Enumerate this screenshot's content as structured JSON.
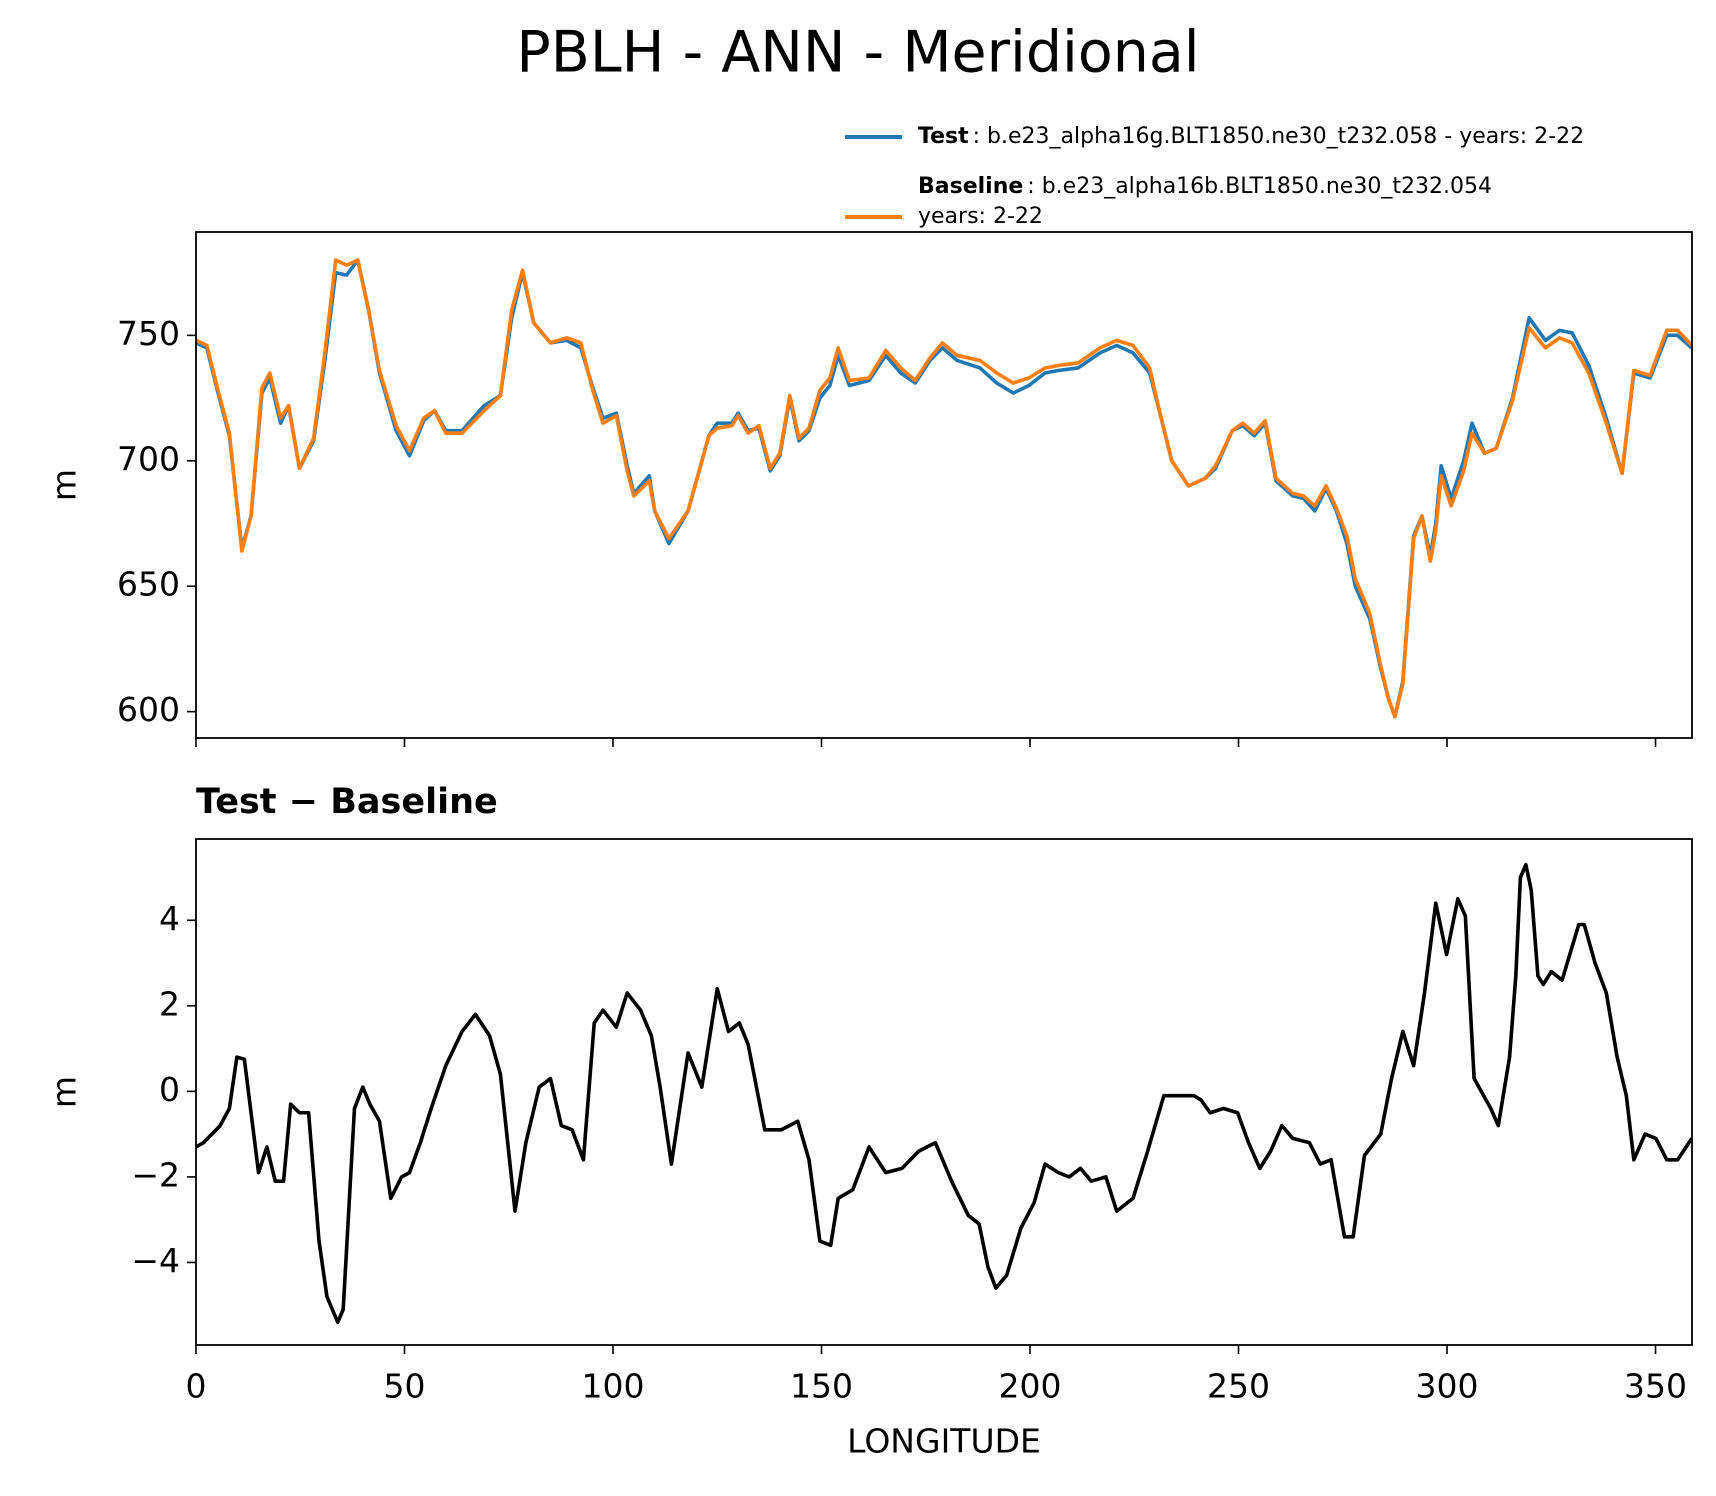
{
  "chart_data": [
    {
      "type": "line",
      "title": "PBLH - ANN - Meridional",
      "ylabel": "m",
      "x": [
        0,
        2.6,
        5.3,
        8,
        11,
        13.2,
        15.8,
        17.7,
        20.3,
        22.2,
        24.8,
        28.2,
        30.9,
        33.5,
        36.1,
        38.8,
        41.4,
        44,
        48,
        51.2,
        54.6,
        57.2,
        59.9,
        63.8,
        69.1,
        73,
        75.7,
        78.3,
        81,
        85,
        88.9,
        92.3,
        95,
        97.6,
        100.8,
        103.4,
        105,
        108.7,
        110,
        113.4,
        118,
        123,
        125,
        128.5,
        130,
        132.4,
        135,
        137.7,
        140,
        142.4,
        144.6,
        147,
        149.6,
        152,
        154,
        156.7,
        161.4,
        165.4,
        169,
        172.5,
        176,
        179,
        182.5,
        188,
        192,
        196,
        199.7,
        203.6,
        206.8,
        211.5,
        216.8,
        220.8,
        224.7,
        228.7,
        231,
        234,
        238,
        242,
        244.5,
        248.5,
        251,
        253.8,
        256.4,
        259,
        263,
        265.6,
        268.3,
        271,
        273.5,
        276,
        278,
        281.5,
        284,
        286,
        287.5,
        289.4,
        292,
        294,
        296,
        297.3,
        298.6,
        301,
        304,
        306,
        309,
        311.8,
        315.7,
        319.7,
        323.6,
        327,
        330,
        334,
        338,
        342,
        344.8,
        348.7,
        352.7,
        355.3,
        358.7
      ],
      "series": [
        {
          "name": "Test",
          "description": [
            ": b.e23_alpha16g.BLT1850.ne30_t232.058 - years: 2-22"
          ],
          "color": "#1f77b4",
          "values": [
            747,
            745,
            727,
            710,
            665,
            678,
            727,
            733,
            715,
            722,
            697,
            708,
            740,
            775,
            774,
            780,
            760,
            735,
            712,
            702,
            716,
            720,
            712,
            712,
            722,
            726,
            757,
            775,
            755,
            747,
            748,
            745,
            730,
            717,
            719,
            698,
            687,
            694,
            680,
            667,
            680,
            710,
            715,
            715,
            719,
            712,
            713,
            696,
            702,
            725,
            708,
            712,
            725,
            730,
            742,
            730,
            732,
            742,
            735,
            731,
            740,
            745,
            740,
            737,
            731,
            727,
            730,
            735,
            736,
            737,
            743,
            746,
            743,
            735,
            720,
            700,
            690,
            693,
            697,
            712,
            714,
            710,
            715,
            692,
            686,
            685,
            680,
            689,
            680,
            667,
            650,
            637,
            618,
            605,
            598,
            612,
            670,
            678,
            662,
            675,
            698,
            685,
            700,
            715,
            703,
            705,
            725,
            757,
            748,
            752,
            751,
            738,
            718,
            695,
            735,
            733,
            750,
            750,
            745
          ]
        },
        {
          "name": "Baseline",
          "description": [
            ": b.e23_alpha16b.BLT1850.ne30_t232.054",
            "years: 2-22"
          ],
          "color": "#ff7f0e",
          "values": [
            748,
            746,
            728,
            711,
            664,
            678,
            729,
            735,
            717,
            722,
            697,
            709,
            743,
            780,
            778,
            780,
            760,
            736,
            714,
            704,
            717,
            720,
            711,
            711,
            720,
            726,
            760,
            776,
            755,
            747,
            749,
            747,
            729,
            715,
            718,
            696,
            686,
            692,
            680,
            669,
            680,
            710,
            713,
            714,
            718,
            711,
            714,
            697,
            703,
            726,
            709,
            713,
            728,
            733,
            745,
            732,
            733,
            744,
            737,
            732,
            741,
            747,
            742,
            740,
            735,
            731,
            733,
            737,
            738,
            739,
            745,
            748,
            746,
            737,
            720,
            700,
            690,
            693,
            698,
            712,
            715,
            711,
            716,
            693,
            687,
            686,
            682,
            690,
            681,
            670,
            653,
            639,
            619,
            605,
            598,
            611,
            669,
            678,
            660,
            672,
            694,
            682,
            696,
            711,
            703,
            705,
            724,
            753,
            745,
            749,
            747,
            735,
            716,
            695,
            736,
            734,
            752,
            752,
            746
          ]
        }
      ],
      "xlim": [
        0,
        358.75
      ],
      "xticks": [
        0,
        50,
        100,
        150,
        200,
        250,
        300,
        350
      ],
      "xtick_labels": false,
      "ylim": [
        589.5,
        791.2
      ],
      "yticks": [
        600,
        650,
        700,
        750
      ],
      "legend": "upper right"
    },
    {
      "type": "line",
      "title": "Test − Baseline",
      "ylabel": "m",
      "xlabel": "LONGITUDE",
      "x": [
        0,
        1.8,
        5.8,
        8,
        9.8,
        11.6,
        15,
        17,
        19,
        21,
        22.7,
        24.8,
        27,
        29.5,
        31.4,
        34,
        35.3,
        38,
        40,
        41.7,
        44,
        46.7,
        49.3,
        51.2,
        53.8,
        56.4,
        59.9,
        63.8,
        67,
        70.4,
        73,
        76.5,
        79.1,
        82.3,
        85,
        87.6,
        90.2,
        92.9,
        95.5,
        97.6,
        100.8,
        103.4,
        106.6,
        109.2,
        111.3,
        114,
        118,
        121.3,
        125,
        127.7,
        130.3,
        132.4,
        136.4,
        140.3,
        144.3,
        147,
        149.6,
        152.2,
        154,
        157.5,
        161.4,
        165.4,
        169.3,
        173.3,
        177.3,
        181.2,
        185.2,
        187.8,
        189.9,
        191.8,
        194.4,
        197.8,
        201,
        203.6,
        206.8,
        209.4,
        212.1,
        214.7,
        218.2,
        220.8,
        224.7,
        227.9,
        232.1,
        235.3,
        239.3,
        241,
        243.2,
        246.4,
        249.8,
        252.4,
        255.1,
        257.7,
        260.4,
        263,
        267,
        269.6,
        272.2,
        275.4,
        277.5,
        280.2,
        284.1,
        286.7,
        289.4,
        292,
        294.6,
        297.3,
        299.9,
        302.6,
        304.4,
        306.5,
        310.5,
        312.3,
        315,
        316.5,
        317.6,
        318.9,
        320.2,
        321.8,
        323.1,
        325,
        327.6,
        331.6,
        332.9,
        335.5,
        338.2,
        340.8,
        343,
        344.8,
        347.5,
        350.1,
        352.7,
        355.3,
        358.7
      ],
      "series": [
        {
          "color": "#000000",
          "values": [
            -1.3,
            -1.2,
            -0.8,
            -0.4,
            0.8,
            0.75,
            -1.9,
            -1.3,
            -2.1,
            -2.1,
            -0.3,
            -0.5,
            -0.5,
            -3.5,
            -4.8,
            -5.4,
            -5.1,
            -0.4,
            0.1,
            -0.3,
            -0.7,
            -2.5,
            -2.0,
            -1.9,
            -1.2,
            -0.4,
            0.6,
            1.4,
            1.8,
            1.3,
            0.4,
            -2.8,
            -1.2,
            0.1,
            0.3,
            -0.8,
            -0.9,
            -1.6,
            1.6,
            1.9,
            1.5,
            2.3,
            1.9,
            1.3,
            0.1,
            -1.7,
            0.9,
            0.1,
            2.4,
            1.4,
            1.6,
            1.1,
            -0.9,
            -0.9,
            -0.7,
            -1.6,
            -3.5,
            -3.6,
            -2.5,
            -2.3,
            -1.3,
            -1.9,
            -1.8,
            -1.4,
            -1.2,
            -2.1,
            -2.9,
            -3.1,
            -4.1,
            -4.6,
            -4.3,
            -3.2,
            -2.6,
            -1.7,
            -1.9,
            -2.0,
            -1.8,
            -2.1,
            -2.0,
            -2.8,
            -2.5,
            -1.5,
            -0.1,
            -0.1,
            -0.1,
            -0.2,
            -0.5,
            -0.4,
            -0.5,
            -1.2,
            -1.8,
            -1.4,
            -0.8,
            -1.1,
            -1.2,
            -1.7,
            -1.6,
            -3.4,
            -3.4,
            -1.5,
            -1.0,
            0.3,
            1.4,
            0.6,
            2.3,
            4.4,
            3.2,
            4.5,
            4.1,
            0.3,
            -0.4,
            -0.8,
            0.8,
            2.7,
            5.0,
            5.3,
            4.7,
            2.7,
            2.5,
            2.8,
            2.6,
            3.9,
            3.9,
            3.0,
            2.3,
            0.8,
            -0.1,
            -1.6,
            -1.0,
            -1.1,
            -1.6,
            -1.6,
            -1.1
          ]
        }
      ],
      "xlim": [
        0,
        358.75
      ],
      "xticks": [
        0,
        50,
        100,
        150,
        200,
        250,
        300,
        350
      ],
      "xtick_labels": true,
      "ylim": [
        -5.93,
        5.9
      ],
      "yticks": [
        {
          "value": -4,
          "label": "−4"
        },
        {
          "value": -2,
          "label": "−2"
        },
        0,
        2,
        4
      ]
    }
  ]
}
